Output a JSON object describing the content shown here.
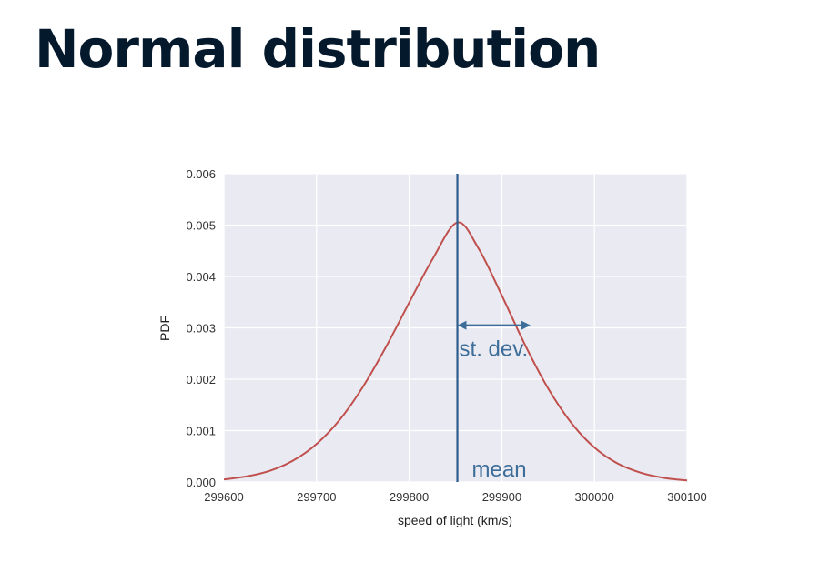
{
  "slide": {
    "title": "Normal distribution"
  },
  "chart_data": {
    "type": "line",
    "xlabel": "speed of light (km/s)",
    "ylabel": "PDF",
    "xlim": [
      299600,
      300100
    ],
    "ylim": [
      0,
      0.006
    ],
    "x_ticks": [
      299600,
      299700,
      299800,
      299900,
      300000,
      300100
    ],
    "y_ticks": [
      0.0,
      0.001,
      0.002,
      0.003,
      0.004,
      0.005,
      0.006
    ],
    "y_tick_labels": [
      "0.000",
      "0.001",
      "0.002",
      "0.003",
      "0.004",
      "0.005",
      "0.006"
    ],
    "grid": true,
    "series": [
      {
        "x": [
          299600,
          299625,
          299650,
          299675,
          299700,
          299725,
          299750,
          299775,
          299800,
          299825,
          299852,
          299875,
          299900,
          299925,
          299950,
          299975,
          300000,
          300025,
          300050,
          300075,
          300100
        ],
        "values": [
          5e-05,
          0.00011,
          0.00022,
          0.00042,
          0.00074,
          0.00121,
          0.00185,
          0.00263,
          0.00349,
          0.00433,
          0.00505,
          0.00454,
          0.00363,
          0.00267,
          0.00182,
          0.00115,
          0.00067,
          0.00036,
          0.00018,
          8e-05,
          3e-05
        ],
        "color": "#c0504d"
      }
    ],
    "mean": 299852,
    "mean_line_color": "#2d5b8a",
    "std_arrow": {
      "x_start": 299852,
      "x_end": 299931,
      "y": 0.00305
    },
    "annotation_color": "#3d6e99",
    "annotations": {
      "std_dev": "st. dev.",
      "mean": "mean"
    }
  }
}
